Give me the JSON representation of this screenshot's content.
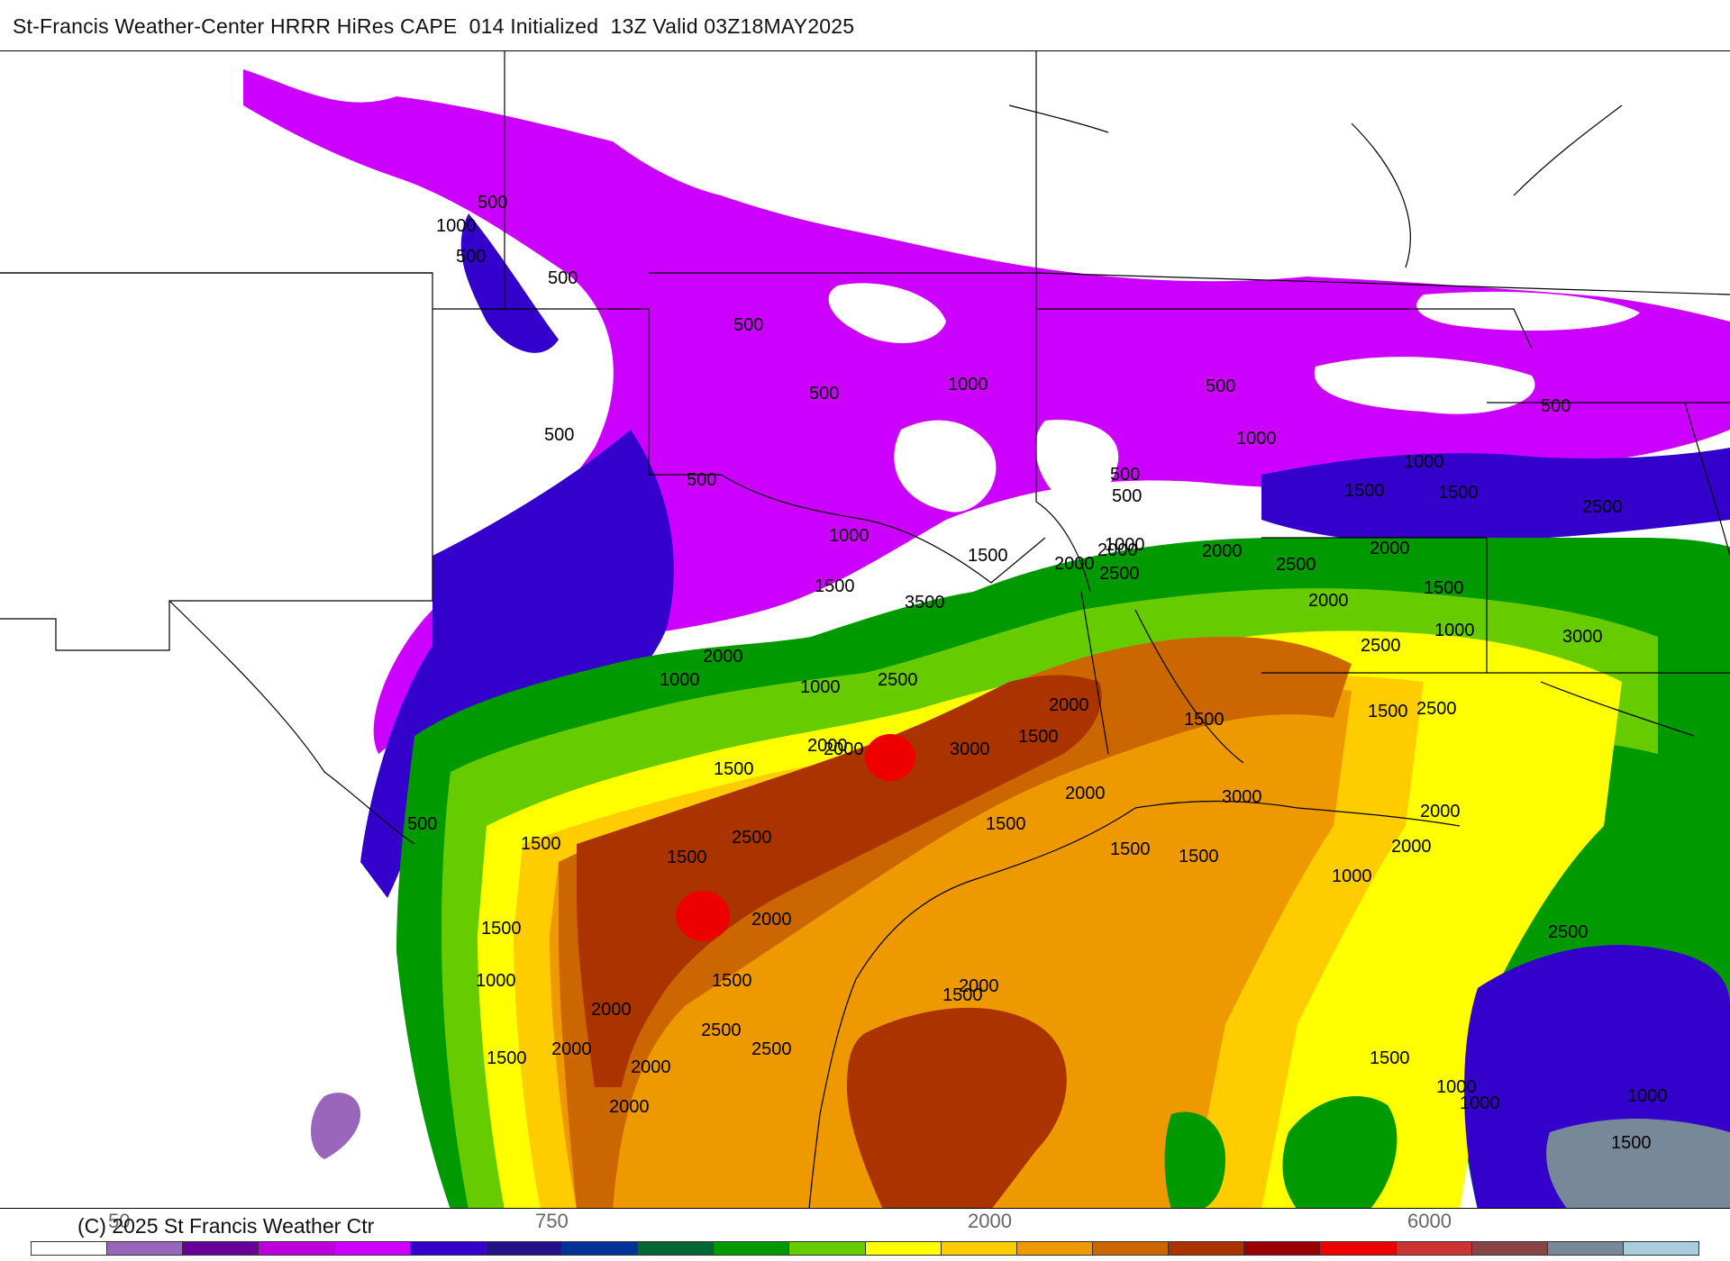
{
  "title": "St-Francis Weather-Center HRRR HiRes CAPE  014 Initialized  13Z Valid 03Z18MAY2025",
  "copyright": "(C) 2025 St Francis Weather Ctr",
  "legend": {
    "tick_labels": [
      "50",
      "750",
      "2000",
      "6000"
    ],
    "colors": [
      "#ffffff",
      "#9966bb",
      "#660099",
      "#bb00dd",
      "#cc00ff",
      "#3300cc",
      "#221188",
      "#003399",
      "#006633",
      "#009900",
      "#66cc00",
      "#ffff00",
      "#ffcc00",
      "#ee9900",
      "#cc6600",
      "#aa3300",
      "#990000",
      "#ee0000",
      "#cc3333",
      "#884444",
      "#778899",
      "#aaccdd"
    ]
  },
  "contour_labels": [
    "500",
    "1000",
    "500",
    "500",
    "500",
    "1000",
    "500",
    "500",
    "1000",
    "500",
    "1000",
    "500",
    "500",
    "500",
    "1000",
    "2000",
    "2000",
    "1500",
    "500",
    "1500",
    "2500",
    "2000",
    "2500",
    "2500",
    "2000",
    "1500",
    "2000",
    "3000",
    "1000",
    "1500",
    "3500",
    "2500",
    "2000",
    "1500",
    "1000",
    "1000",
    "1000",
    "2500",
    "2000",
    "1500",
    "1500",
    "1500",
    "2000",
    "3000",
    "2000",
    "1500",
    "3000",
    "2500",
    "1500",
    "1500",
    "2000",
    "1500",
    "500",
    "2500",
    "2000",
    "2000",
    "1500",
    "1500",
    "1000",
    "1500",
    "2500",
    "2000",
    "1500",
    "1000",
    "2000",
    "1500",
    "2000",
    "2500",
    "2500",
    "2000",
    "2000",
    "1500",
    "2000",
    "1000",
    "1500",
    "1000",
    "1500",
    "1000"
  ]
}
